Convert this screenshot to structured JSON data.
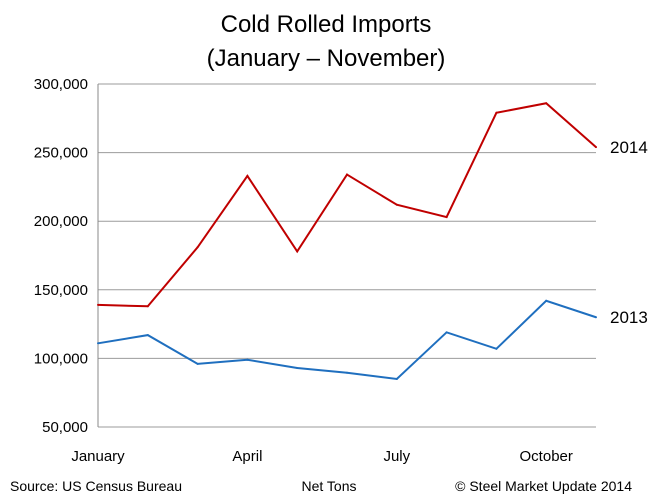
{
  "footer": {
    "source": "Source: US Census Bureau",
    "units": "Net Tons",
    "copyright": "© Steel Market Update 2014"
  },
  "chart_data": {
    "type": "line",
    "title": "Cold Rolled Imports",
    "subtitle": "(January – November)",
    "xlabel": "",
    "ylabel": "",
    "x": [
      "January",
      "February",
      "March",
      "April",
      "May",
      "June",
      "July",
      "August",
      "September",
      "October",
      "November"
    ],
    "x_tick_labels": [
      "January",
      "April",
      "July",
      "October"
    ],
    "y_tick_labels": [
      "50,000",
      "100,000",
      "150,000",
      "200,000",
      "250,000",
      "300,000"
    ],
    "ylim": [
      50000,
      300000
    ],
    "grid": "horizontal",
    "series": [
      {
        "name": "2014",
        "color": "#c00000",
        "values": [
          139000,
          138000,
          181000,
          233000,
          178000,
          234000,
          212000,
          203000,
          279000,
          286000,
          254000
        ]
      },
      {
        "name": "2013",
        "color": "#1f6fbf",
        "values": [
          111000,
          117000,
          96000,
          99000,
          93000,
          89500,
          85000,
          119000,
          107000,
          142000,
          130000
        ]
      }
    ]
  }
}
